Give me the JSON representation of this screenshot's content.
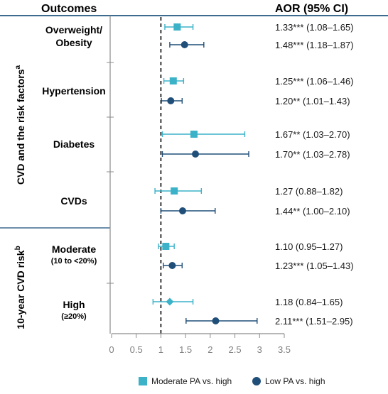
{
  "header": {
    "left": "Outcomes",
    "right": "AOR (95% CI)"
  },
  "sections": [
    {
      "label": "CVD and the risk factors",
      "superscript": "a"
    },
    {
      "label": "10-year CVD risk",
      "superscript": "b"
    }
  ],
  "colors": {
    "moderate": "#3bb2c8",
    "low": "#1f4e79",
    "axis": "#8c8c8c",
    "divider": "#3d6b8f",
    "refline": "#000000"
  },
  "chart_data": {
    "type": "forest",
    "xlim": [
      0,
      3.5
    ],
    "xticks": [
      "0",
      "0.5",
      "1",
      "1.5",
      "2",
      "2.5",
      "3",
      "3.5"
    ],
    "reference_line": 1,
    "legend": [
      {
        "series": "moderate",
        "label": "Moderate PA vs. high",
        "marker": "square"
      },
      {
        "series": "low",
        "label": "Low PA vs. high",
        "marker": "circle"
      }
    ],
    "groups": [
      {
        "section": 0,
        "label": [
          "Overweight/",
          "Obesity"
        ],
        "sub": "",
        "rows": [
          {
            "series": "moderate",
            "marker": "square",
            "est": 1.33,
            "lo": 1.08,
            "hi": 1.65,
            "text": "1.33*** (1.08–1.65)"
          },
          {
            "series": "low",
            "marker": "circle",
            "est": 1.48,
            "lo": 1.18,
            "hi": 1.87,
            "text": "1.48*** (1.18–1.87)"
          }
        ]
      },
      {
        "section": 0,
        "label": [
          "Hypertension"
        ],
        "sub": "",
        "rows": [
          {
            "series": "moderate",
            "marker": "square",
            "est": 1.25,
            "lo": 1.06,
            "hi": 1.46,
            "text": "1.25*** (1.06–1.46)"
          },
          {
            "series": "low",
            "marker": "circle",
            "est": 1.2,
            "lo": 1.01,
            "hi": 1.43,
            "text": "1.20** (1.01–1.43)"
          }
        ]
      },
      {
        "section": 0,
        "label": [
          "Diabetes"
        ],
        "sub": "",
        "rows": [
          {
            "series": "moderate",
            "marker": "square",
            "est": 1.67,
            "lo": 1.03,
            "hi": 2.7,
            "text": "1.67** (1.03–2.70)"
          },
          {
            "series": "low",
            "marker": "circle",
            "est": 1.7,
            "lo": 1.03,
            "hi": 2.78,
            "text": "1.70** (1.03–2.78)"
          }
        ]
      },
      {
        "section": 0,
        "label": [
          "CVDs"
        ],
        "sub": "",
        "rows": [
          {
            "series": "moderate",
            "marker": "square",
            "est": 1.27,
            "lo": 0.88,
            "hi": 1.82,
            "text": "1.27 (0.88–1.82)"
          },
          {
            "series": "low",
            "marker": "circle",
            "est": 1.44,
            "lo": 1.0,
            "hi": 2.1,
            "text": "1.44** (1.00–2.10)"
          }
        ]
      },
      {
        "section": 1,
        "label": [
          "Moderate"
        ],
        "sub": "(10 to <20%)",
        "rows": [
          {
            "series": "moderate",
            "marker": "square",
            "est": 1.1,
            "lo": 0.95,
            "hi": 1.27,
            "text": "1.10 (0.95–1.27)"
          },
          {
            "series": "low",
            "marker": "circle",
            "est": 1.23,
            "lo": 1.05,
            "hi": 1.43,
            "text": "1.23*** (1.05–1.43)"
          }
        ]
      },
      {
        "section": 1,
        "label": [
          "High"
        ],
        "sub": "(≥20%)",
        "rows": [
          {
            "series": "moderate",
            "marker": "diamond",
            "est": 1.18,
            "lo": 0.84,
            "hi": 1.65,
            "text": "1.18 (0.84–1.65)"
          },
          {
            "series": "low",
            "marker": "circle",
            "est": 2.11,
            "lo": 1.51,
            "hi": 2.95,
            "text": "2.11*** (1.51–2.95)"
          }
        ]
      }
    ]
  }
}
